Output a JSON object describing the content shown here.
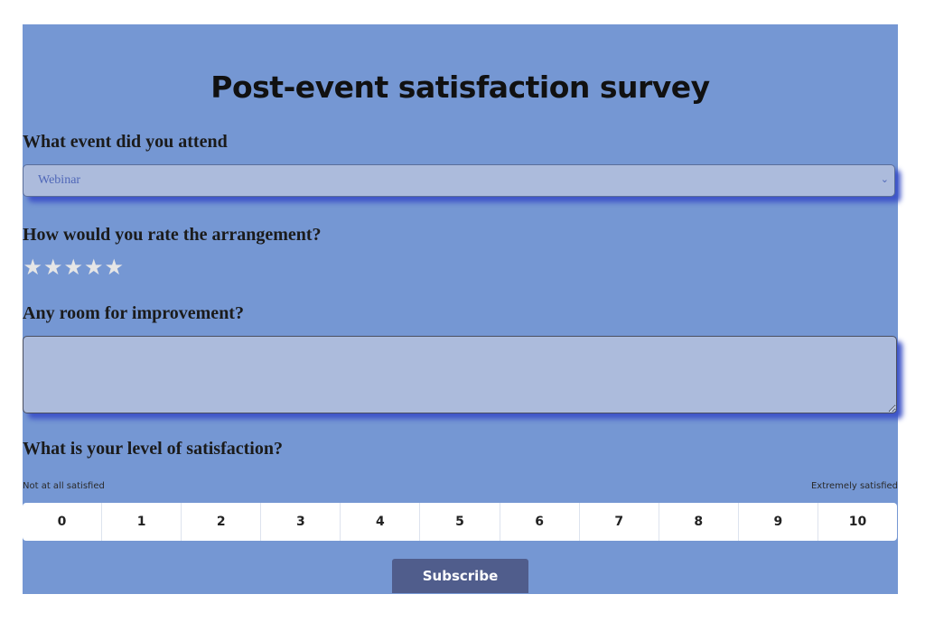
{
  "survey": {
    "title": "Post-event satisfaction survey",
    "event_question": "What event did you attend",
    "event_select": {
      "selected": "Webinar"
    },
    "rating_question": "How would you rate the arrangement?",
    "rating": {
      "max": 5,
      "value": 0,
      "star_glyph": "★",
      "star_color": "#e6e6e6"
    },
    "improvement_question": "Any room for improvement?",
    "improvement_text": "",
    "satisfaction_question": "What is your level of satisfaction?",
    "scale_min_label": "Not at all satisfied",
    "scale_max_label": "Extremely satisfied",
    "scale_options": [
      "0",
      "1",
      "2",
      "3",
      "4",
      "5",
      "6",
      "7",
      "8",
      "9",
      "10"
    ],
    "submit_label": "Subscribe"
  },
  "colors": {
    "page_background": "#ffffff",
    "form_background": "#7597d3",
    "field_background": "#acbbdc",
    "field_shadow": "#3f55c8",
    "button_background": "#505d8c",
    "button_text": "#ffffff"
  },
  "icons": {
    "select_chevron": "chevron-down-icon",
    "rating_star": "star-icon"
  }
}
